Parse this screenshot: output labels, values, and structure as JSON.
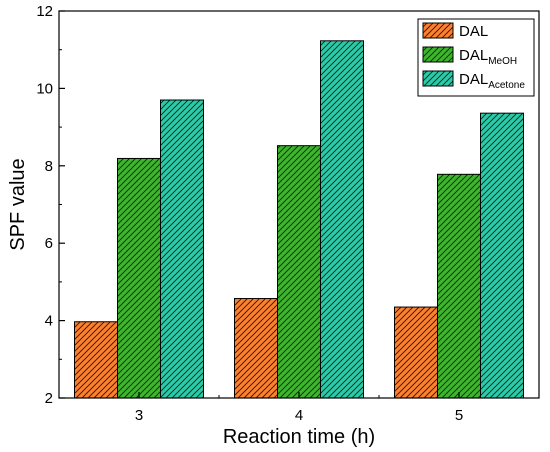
{
  "chart_data": {
    "type": "bar",
    "categories": [
      "3",
      "4",
      "5"
    ],
    "series": [
      {
        "name": "DAL",
        "name_sub": "",
        "values": [
          3.97,
          4.57,
          4.35
        ],
        "color": "#ff7f2a"
      },
      {
        "name": "DAL",
        "name_sub": "MeOH",
        "values": [
          8.19,
          8.52,
          7.78
        ],
        "color": "#3bb82a"
      },
      {
        "name": "DAL",
        "name_sub": "Acetone",
        "values": [
          9.7,
          11.23,
          9.36
        ],
        "color": "#29cca8"
      }
    ],
    "xlabel": "Reaction time (h)",
    "ylabel": "SPF value",
    "ylim": [
      2,
      12
    ],
    "yticks": [
      "2",
      "4",
      "6",
      "8",
      "10",
      "12"
    ],
    "pattern": "diagonal-hatch",
    "legend_position": "top-right",
    "grid": false
  }
}
